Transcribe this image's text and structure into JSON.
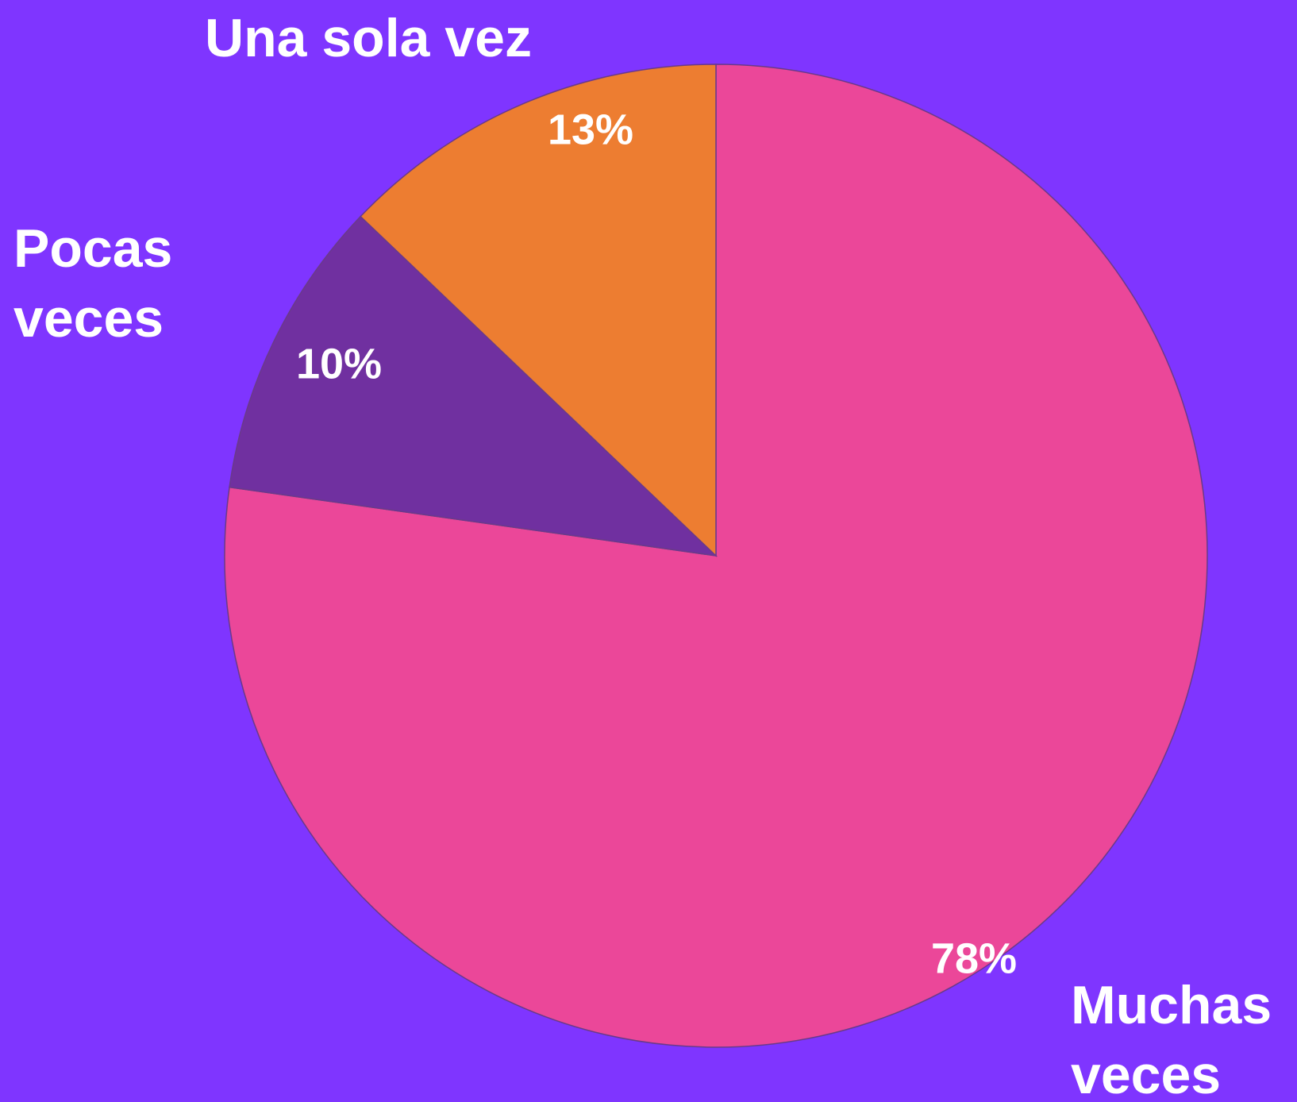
{
  "chart_data": {
    "type": "pie",
    "categories": [
      "Muchas veces",
      "Pocas veces",
      "Una sola vez"
    ],
    "values": [
      78,
      10,
      13
    ],
    "value_labels": [
      "78%",
      "10%",
      "13%"
    ],
    "colors": [
      "#eb4799",
      "#7030a0",
      "#ed7d31"
    ],
    "background": "#7f35ff"
  }
}
